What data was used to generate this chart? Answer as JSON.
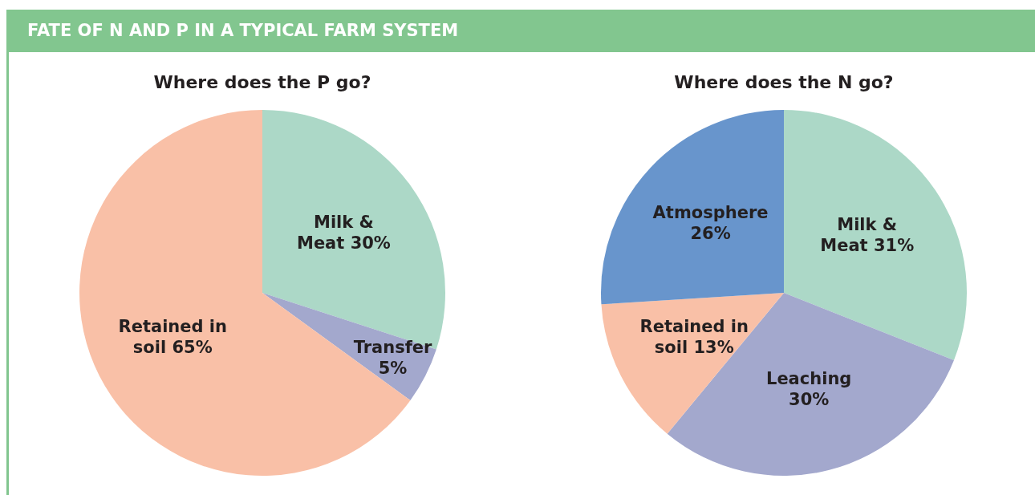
{
  "chart_data": [
    {
      "type": "pie",
      "title": "FATE OF N AND P IN A TYPICAL FARM SYSTEM",
      "subtitle": "Where does the P go?",
      "categories": [
        "Milk & Meat",
        "Transfer",
        "Retained in soil"
      ],
      "values": [
        30,
        5,
        65
      ],
      "value_labels": [
        "30%",
        "5%",
        "65%"
      ],
      "colors": [
        "#acd8c7",
        "#a3a8cd",
        "#f9c0a7"
      ]
    },
    {
      "type": "pie",
      "title": "Where does the N go?",
      "categories": [
        "Milk & Meat",
        "Leaching",
        "Retained in soil",
        "Atmosphere"
      ],
      "values": [
        31,
        30,
        13,
        26
      ],
      "value_labels": [
        "31%",
        "30%",
        "13%",
        "26%"
      ],
      "colors": [
        "#acd8c7",
        "#a3a8cd",
        "#f9c0a7",
        "#6895cc"
      ]
    }
  ]
}
